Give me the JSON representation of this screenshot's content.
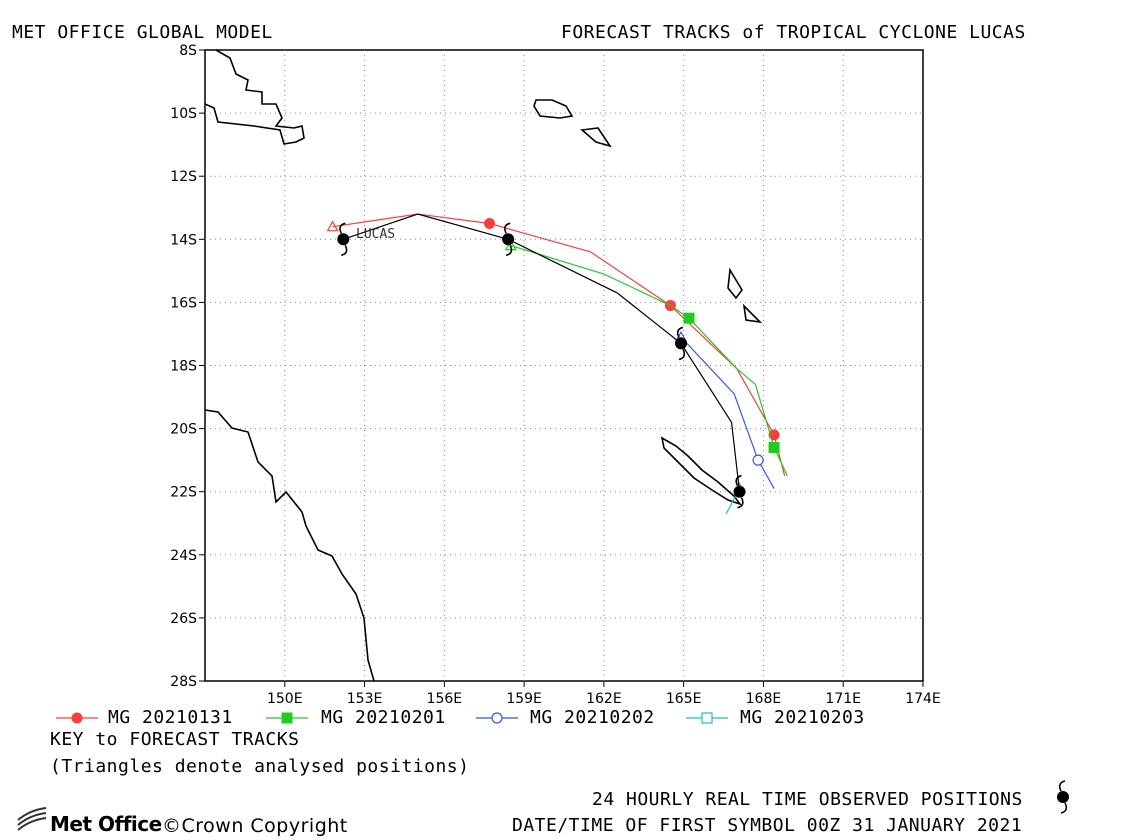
{
  "header": {
    "left_title": "MET OFFICE GLOBAL MODEL",
    "right_title": "FORECAST TRACKS of TROPICAL CYCLONE LUCAS"
  },
  "legend": [
    {
      "label": "MG 20210131",
      "color": "#ff3b3b",
      "marker": "filled-circle"
    },
    {
      "label": "MG 20210201",
      "color": "#1fcc1f",
      "marker": "filled-square"
    },
    {
      "label": "MG 20210202",
      "color": "#3355ee",
      "marker": "open-circle"
    },
    {
      "label": "MG 20210203",
      "color": "#19c2c2",
      "marker": "open-square"
    }
  ],
  "key": {
    "title": "KEY to FORECAST TRACKS",
    "note": "(Triangles denote analysed positions)"
  },
  "footer": {
    "observed_label": "24 HOURLY REAL TIME OBSERVED POSITIONS",
    "first_symbol": "DATE/TIME OF FIRST SYMBOL 00Z 31 JANUARY 2021",
    "copyright": "©Crown Copyright",
    "logo_text": "Met Office"
  },
  "storm_label": "LUCAS",
  "chart_data": {
    "type": "map",
    "x_ticks": [
      "150E",
      "153E",
      "156E",
      "159E",
      "162E",
      "165E",
      "168E",
      "171E",
      "174E"
    ],
    "y_ticks": [
      "8S",
      "10S",
      "12S",
      "14S",
      "16S",
      "18S",
      "20S",
      "22S",
      "24S",
      "26S",
      "28S"
    ],
    "xlim": [
      147,
      174
    ],
    "ylim": [
      -28,
      -8
    ],
    "grid": true,
    "observed_track": [
      [
        152.2,
        -14.0
      ],
      [
        155.0,
        -13.2
      ],
      [
        158.4,
        -14.0
      ],
      [
        162.5,
        -15.7
      ],
      [
        164.9,
        -17.3
      ],
      [
        166.8,
        -19.8
      ],
      [
        167.1,
        -22.0
      ]
    ],
    "observed_symbols": [
      [
        152.2,
        -14.0
      ],
      [
        158.4,
        -14.0
      ],
      [
        164.9,
        -17.3
      ],
      [
        167.1,
        -22.0
      ]
    ],
    "forecast_tracks": [
      {
        "name": "MG 20210131",
        "analysed": [
          151.8,
          -13.6
        ],
        "points": [
          [
            151.8,
            -13.6
          ],
          [
            155.0,
            -13.2
          ],
          [
            157.7,
            -13.5
          ],
          [
            161.5,
            -14.4
          ],
          [
            164.5,
            -16.1
          ],
          [
            167.0,
            -18.1
          ],
          [
            168.4,
            -20.2
          ],
          [
            168.8,
            -21.5
          ]
        ],
        "markers": [
          [
            157.7,
            -13.5
          ],
          [
            164.5,
            -16.1
          ],
          [
            168.4,
            -20.2
          ]
        ]
      },
      {
        "name": "MG 20210201",
        "analysed": [
          158.5,
          -14.2
        ],
        "points": [
          [
            158.5,
            -14.2
          ],
          [
            162.0,
            -15.1
          ],
          [
            164.5,
            -16.1
          ],
          [
            165.2,
            -16.5
          ],
          [
            167.0,
            -18.1
          ],
          [
            167.7,
            -18.6
          ],
          [
            168.4,
            -20.6
          ],
          [
            168.9,
            -21.5
          ]
        ],
        "markers": [
          [
            165.2,
            -16.5
          ],
          [
            168.4,
            -20.6
          ]
        ]
      },
      {
        "name": "MG 20210202",
        "analysed": [
          164.9,
          -17.1
        ],
        "points": [
          [
            164.9,
            -17.1
          ],
          [
            166.9,
            -18.9
          ],
          [
            167.8,
            -21.0
          ],
          [
            168.4,
            -21.9
          ]
        ],
        "markers": [
          [
            167.8,
            -21.0
          ]
        ]
      },
      {
        "name": "MG 20210203",
        "analysed": [
          167.1,
          -21.9
        ],
        "points": [
          [
            167.1,
            -21.9
          ],
          [
            166.6,
            -22.7
          ]
        ],
        "markers": []
      }
    ]
  }
}
